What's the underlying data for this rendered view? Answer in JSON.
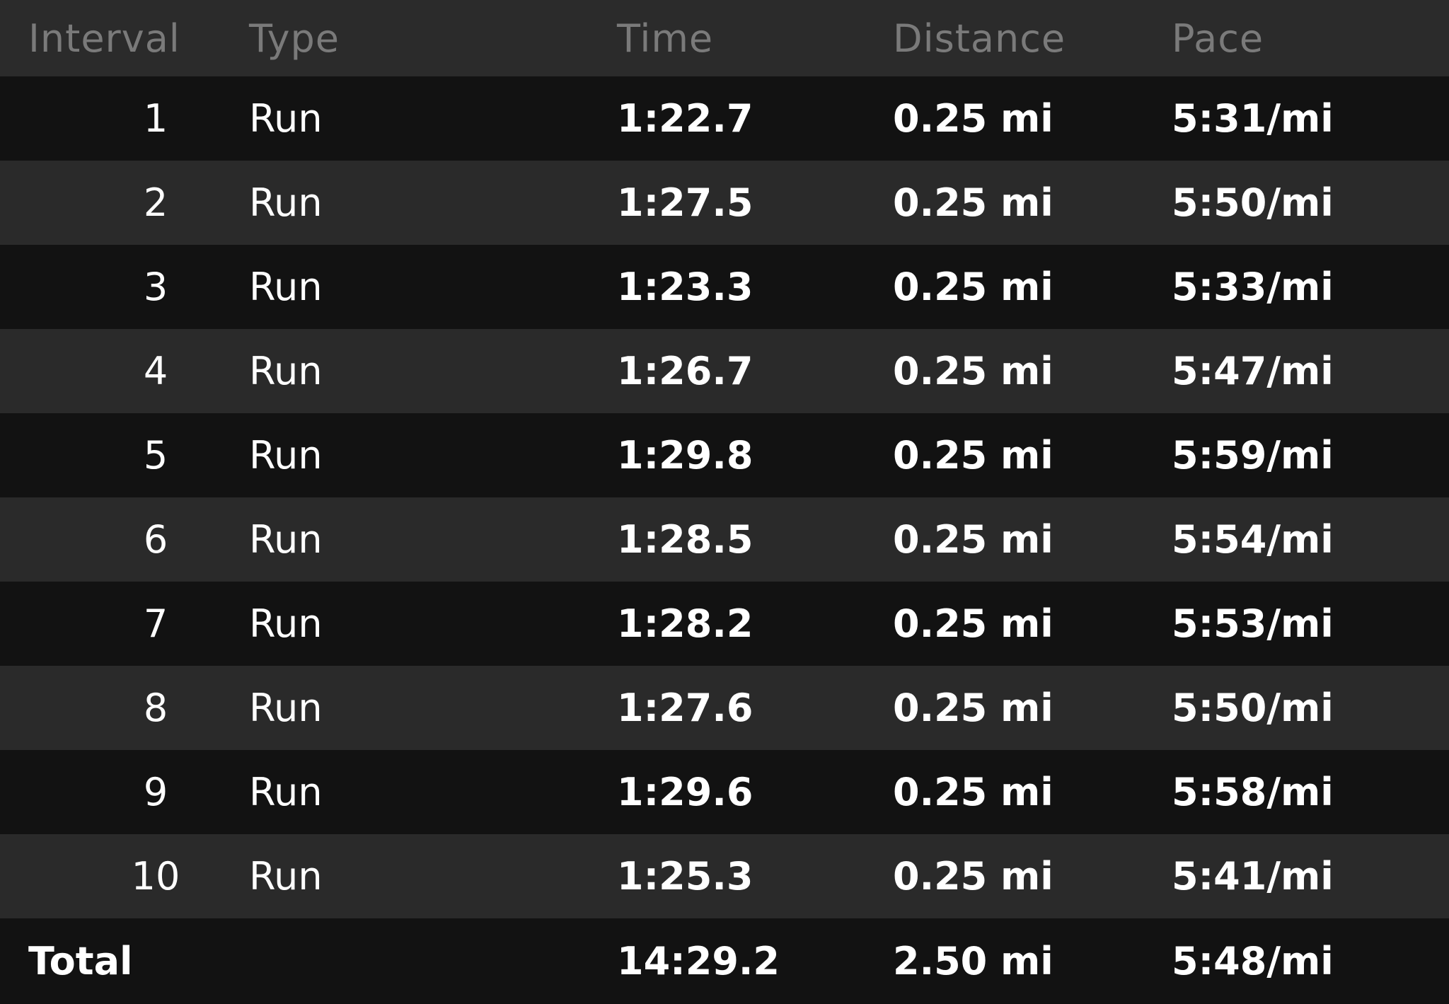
{
  "header": {
    "interval": "Interval",
    "type": "Type",
    "time": "Time",
    "distance": "Distance",
    "pace": "Pace"
  },
  "rows": [
    {
      "interval": "1",
      "type": "Run",
      "time": "1:22.7",
      "distance": "0.25 mi",
      "pace": "5:31/mi"
    },
    {
      "interval": "2",
      "type": "Run",
      "time": "1:27.5",
      "distance": "0.25 mi",
      "pace": "5:50/mi"
    },
    {
      "interval": "3",
      "type": "Run",
      "time": "1:23.3",
      "distance": "0.25 mi",
      "pace": "5:33/mi"
    },
    {
      "interval": "4",
      "type": "Run",
      "time": "1:26.7",
      "distance": "0.25 mi",
      "pace": "5:47/mi"
    },
    {
      "interval": "5",
      "type": "Run",
      "time": "1:29.8",
      "distance": "0.25 mi",
      "pace": "5:59/mi"
    },
    {
      "interval": "6",
      "type": "Run",
      "time": "1:28.5",
      "distance": "0.25 mi",
      "pace": "5:54/mi"
    },
    {
      "interval": "7",
      "type": "Run",
      "time": "1:28.2",
      "distance": "0.25 mi",
      "pace": "5:53/mi"
    },
    {
      "interval": "8",
      "type": "Run",
      "time": "1:27.6",
      "distance": "0.25 mi",
      "pace": "5:50/mi"
    },
    {
      "interval": "9",
      "type": "Run",
      "time": "1:29.6",
      "distance": "0.25 mi",
      "pace": "5:58/mi"
    },
    {
      "interval": "10",
      "type": "Run",
      "time": "1:25.3",
      "distance": "0.25 mi",
      "pace": "5:41/mi"
    }
  ],
  "total": {
    "label": "Total",
    "time": "14:29.2",
    "distance": "2.50 mi",
    "pace": "5:48/mi"
  },
  "colors": {
    "background": "#111111",
    "row_alt": "#2a2a2a",
    "header_bg": "#2b2b2b",
    "header_text": "#7a7a7a",
    "text": "#ffffff"
  }
}
